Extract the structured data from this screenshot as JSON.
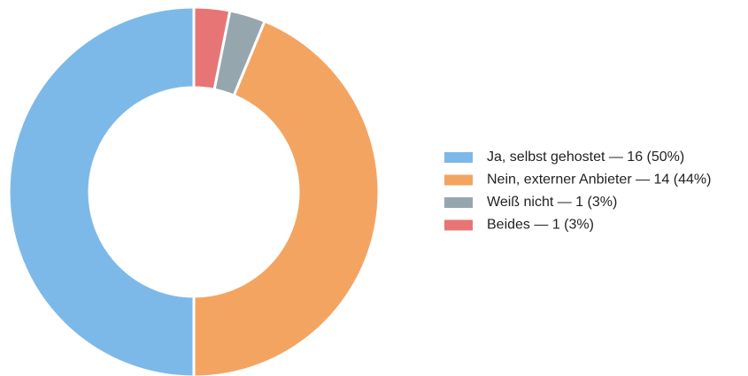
{
  "chart_data": {
    "type": "donut",
    "categories": [
      "Ja, selbst gehostet — 16 (50%)",
      "Nein, externer Anbieter — 14 (44%)",
      "Weiß nicht — 1 (3%)",
      "Beides — 1 (3%)"
    ],
    "values": [
      16,
      14,
      1,
      1
    ],
    "colors": [
      "#7db9e8",
      "#f4a461",
      "#95a6ae",
      "#e87576"
    ],
    "legend": "right"
  }
}
